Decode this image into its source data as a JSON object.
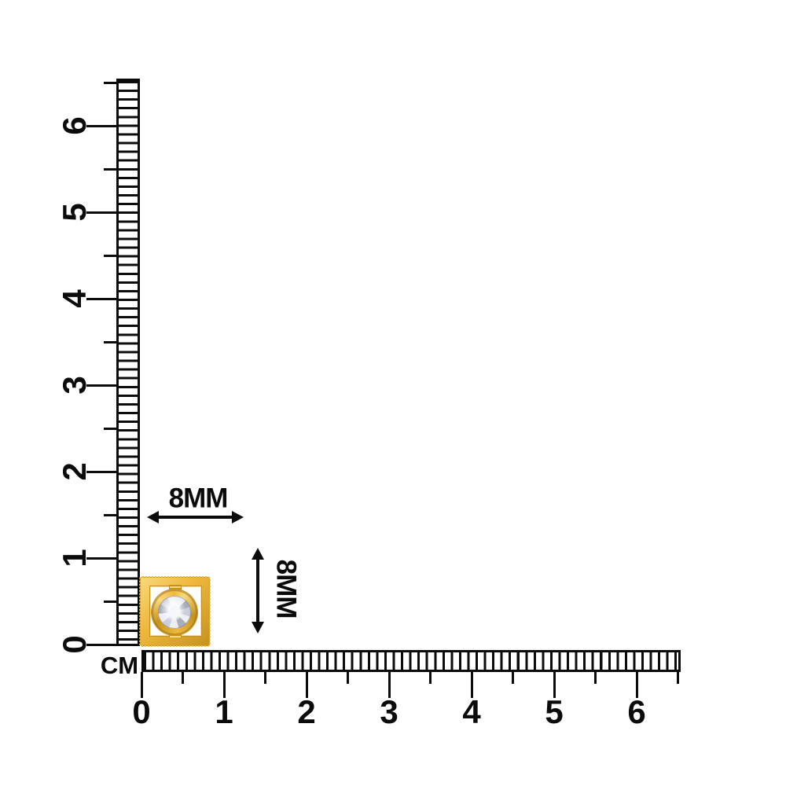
{
  "rulers": {
    "vertical": {
      "tick_labels": [
        "0",
        "1",
        "2",
        "3",
        "4",
        "5",
        "6"
      ]
    },
    "horizontal": {
      "tick_labels": [
        "0",
        "1",
        "2",
        "3",
        "4",
        "5",
        "6"
      ],
      "unit_label": "CM"
    }
  },
  "dimension_annotations": {
    "width_label": "8MM",
    "height_label": "8MM"
  },
  "product": {
    "icon": "gold-square-frame-pendant-with-round-diamond"
  },
  "colors": {
    "ink": "#0B0B0B",
    "background": "#FFFFFF",
    "gold": "#EFB93E",
    "gold_dark": "#C6921F",
    "gold_light": "#FAD97E",
    "diamond_light": "#EDEFF4",
    "diamond_mid": "#C9CEDA",
    "diamond_dark": "#A7ADBB"
  }
}
